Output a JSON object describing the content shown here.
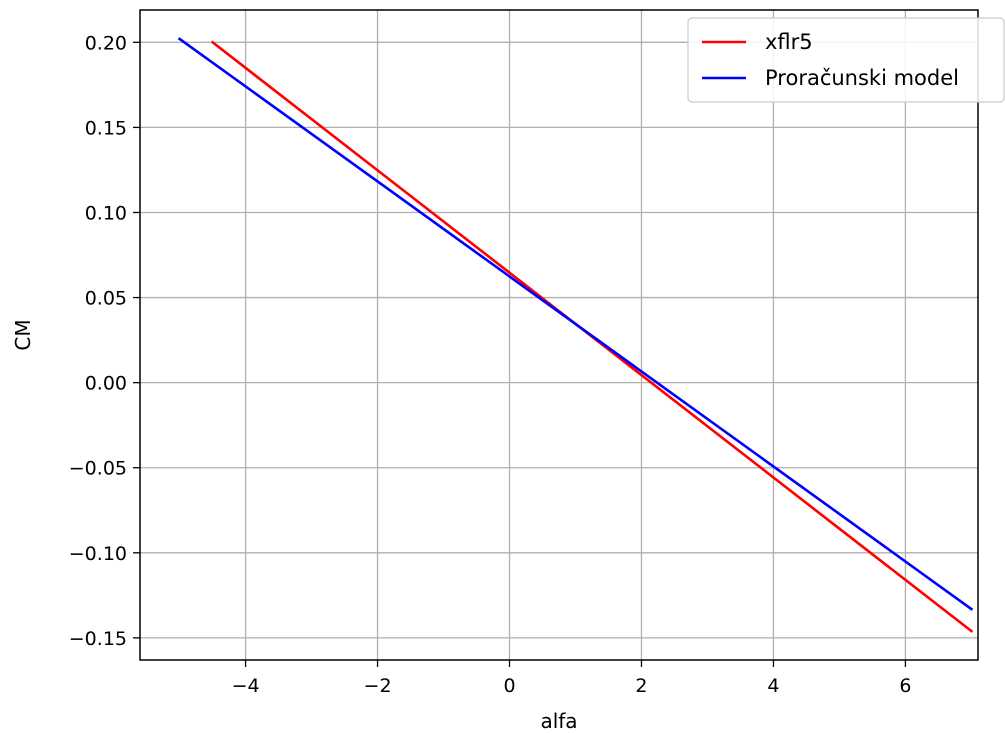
{
  "chart_data": {
    "type": "line",
    "title": "",
    "xlabel": "alfa",
    "ylabel": "CM",
    "xlim": [
      -5.6,
      7.1
    ],
    "ylim": [
      -0.163,
      0.219
    ],
    "xticks": [
      -4,
      -2,
      0,
      2,
      4,
      6
    ],
    "yticks": [
      -0.15,
      -0.1,
      -0.05,
      0.0,
      0.05,
      0.1,
      0.15,
      0.2
    ],
    "xtick_labels": [
      "−4",
      "−2",
      "0",
      "2",
      "4",
      "6"
    ],
    "ytick_labels": [
      "−0.15",
      "−0.10",
      "−0.05",
      "0.00",
      "0.05",
      "0.10",
      "0.15",
      "0.20"
    ],
    "grid": true,
    "legend_position": "top-right",
    "series": [
      {
        "name": "xflr5",
        "color": "#ff0000",
        "x": [
          -4.5,
          7.0
        ],
        "y": [
          0.2,
          -0.146
        ]
      },
      {
        "name": "Proračunski model",
        "color": "#0000ff",
        "x": [
          -5.0,
          7.0
        ],
        "y": [
          0.202,
          -0.133
        ]
      }
    ]
  }
}
